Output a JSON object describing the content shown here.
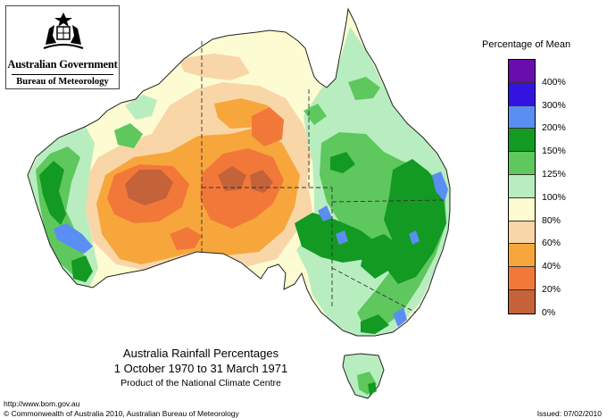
{
  "logo": {
    "government": "Australian Government",
    "bureau": "Bureau of Meteorology"
  },
  "legend": {
    "title": "Percentage of Mean",
    "bins": [
      {
        "label": "",
        "color": "#6a0dad"
      },
      {
        "label": "400%",
        "color": "#3314e0"
      },
      {
        "label": "300%",
        "color": "#5b8ef2"
      },
      {
        "label": "200%",
        "color": "#129a23"
      },
      {
        "label": "150%",
        "color": "#5ec75e"
      },
      {
        "label": "125%",
        "color": "#b8edc0"
      },
      {
        "label": "100%",
        "color": "#fdfbd1"
      },
      {
        "label": "80%",
        "color": "#f9d6a8"
      },
      {
        "label": "60%",
        "color": "#f7a63c"
      },
      {
        "label": "40%",
        "color": "#f2783a"
      },
      {
        "label": "20%",
        "color": "#c4623a"
      },
      {
        "label": "0%",
        "color": ""
      }
    ]
  },
  "map": {
    "title": "Australia Rainfall Percentages",
    "period": "1 October 1970 to 31 March 1971",
    "product": "Product of the National Climate Centre"
  },
  "footer": {
    "url": "http://www.bom.gov.au",
    "copyright": "© Commonwealth of Australia 2010, Australian Bureau of Meteorology",
    "issued": "Issued: 07/02/2010"
  }
}
